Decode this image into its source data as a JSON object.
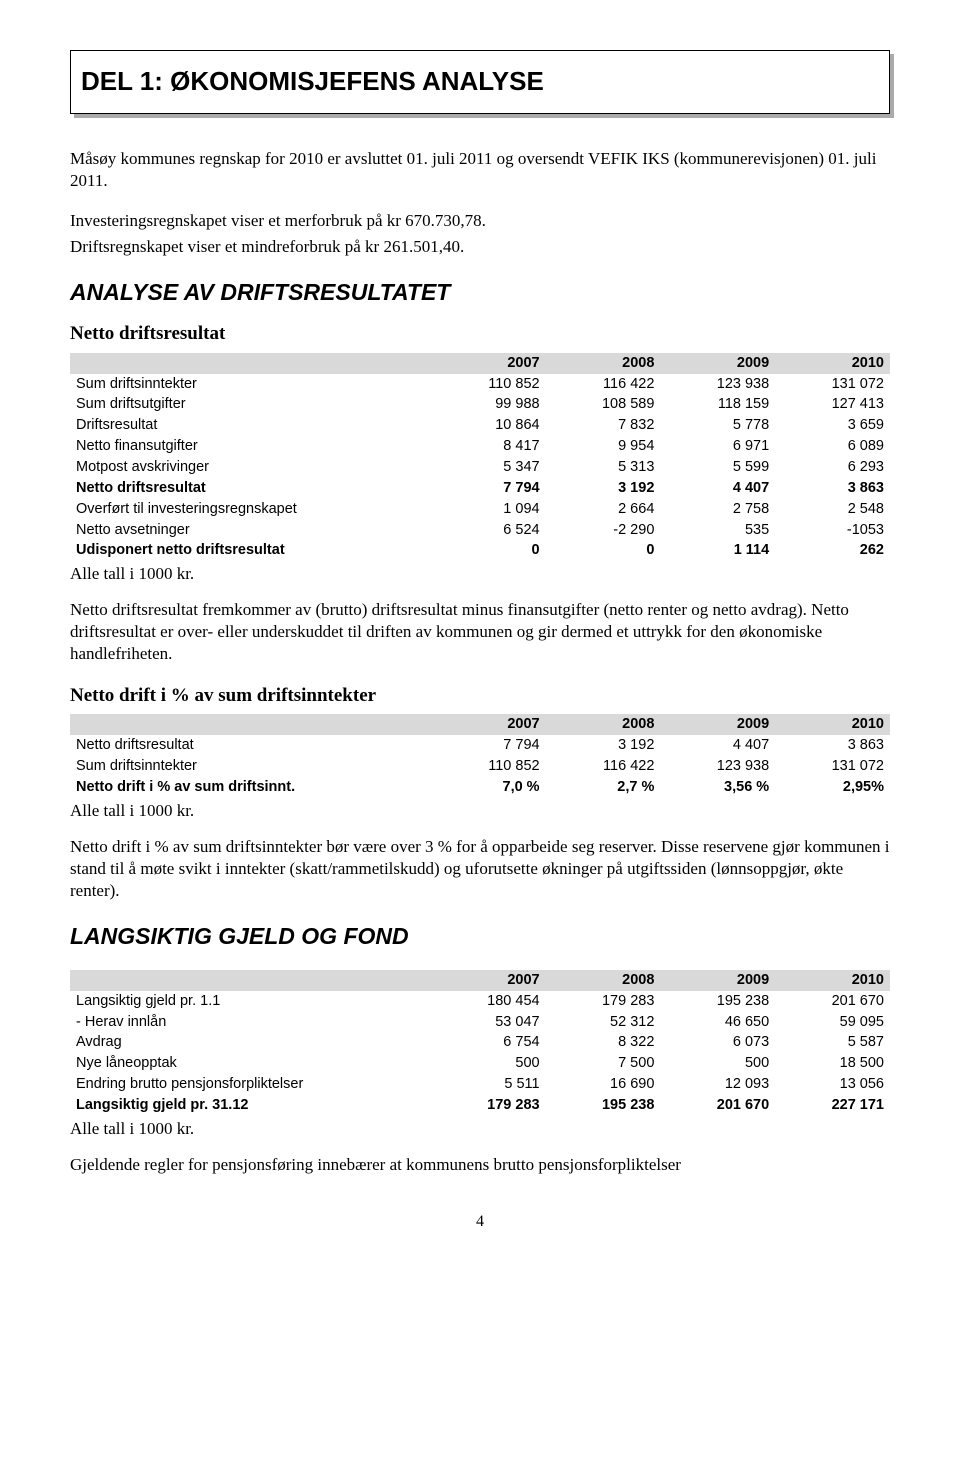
{
  "page_number": "4",
  "title": "DEL 1: ØKONOMISJEFENS ANALYSE",
  "intro_p1": "Måsøy kommunes regnskap for 2010 er avsluttet 01. juli 2011 og oversendt VEFIK IKS (kommunerevisjonen) 01. juli 2011.",
  "intro_p2": "Investeringsregnskapet viser et merforbruk på kr 670.730,78.",
  "intro_p3": "Driftsregnskapet viser et mindreforbruk på kr 261.501,40.",
  "h2_analyse": "ANALYSE AV DRIFTSRESULTATET",
  "h3_netto": "Netto driftsresultat",
  "table1": {
    "columns": [
      "",
      "2007",
      "2008",
      "2009",
      "2010"
    ],
    "rows": [
      {
        "label": "Sum driftsinntekter",
        "c": [
          "110 852",
          "116 422",
          "123 938",
          "131 072"
        ],
        "bold": false
      },
      {
        "label": "Sum driftsutgifter",
        "c": [
          "99 988",
          "108 589",
          "118 159",
          "127 413"
        ],
        "bold": false
      },
      {
        "label": "Driftsresultat",
        "c": [
          "10 864",
          "7 832",
          "5 778",
          "3 659"
        ],
        "bold": false
      },
      {
        "label": "Netto finansutgifter",
        "c": [
          "8 417",
          "9 954",
          "6 971",
          "6 089"
        ],
        "bold": false
      },
      {
        "label": "Motpost avskrivinger",
        "c": [
          "5 347",
          "5 313",
          "5 599",
          "6 293"
        ],
        "bold": false
      },
      {
        "label": "Netto driftsresultat",
        "c": [
          "7 794",
          "3 192",
          "4 407",
          "3 863"
        ],
        "bold": true
      },
      {
        "label": "Overført til investeringsregnskapet",
        "c": [
          "1 094",
          "2 664",
          "2 758",
          "2 548"
        ],
        "bold": false
      },
      {
        "label": "Netto avsetninger",
        "c": [
          "6 524",
          "-2 290",
          "535",
          "-1053"
        ],
        "bold": false
      },
      {
        "label": "Udisponert netto driftsresultat",
        "c": [
          "0",
          "0",
          "1 114",
          "262"
        ],
        "bold": true
      }
    ]
  },
  "note_kr": "Alle tall i 1000 kr.",
  "para_netto": "Netto driftsresultat fremkommer av (brutto) driftsresultat minus finansutgifter (netto renter og netto avdrag). Netto driftsresultat er over- eller underskuddet til driften av kommunen og gir dermed et uttrykk for den økonomiske handlefriheten.",
  "h3_netto_pct": "Netto drift i % av sum driftsinntekter",
  "table2": {
    "columns": [
      "",
      "2007",
      "2008",
      "2009",
      "2010"
    ],
    "rows": [
      {
        "label": "Netto driftsresultat",
        "c": [
          "7 794",
          "3 192",
          "4 407",
          "3 863"
        ],
        "bold": false
      },
      {
        "label": "Sum driftsinntekter",
        "c": [
          "110 852",
          "116 422",
          "123 938",
          "131 072"
        ],
        "bold": false
      },
      {
        "label": "Netto drift i % av sum driftsinnt.",
        "c": [
          "7,0 %",
          "2,7 %",
          "3,56 %",
          "2,95%"
        ],
        "bold": true
      }
    ]
  },
  "para_pct": "Netto drift i % av sum driftsinntekter bør være over 3 % for å opparbeide seg reserver. Disse reservene gjør kommunen i stand til å møte svikt i inntekter (skatt/rammetilskudd) og uforutsette økninger på utgiftssiden (lønnsoppgjør, økte renter).",
  "h2_gjeld": "LANGSIKTIG GJELD OG FOND",
  "table3": {
    "columns": [
      "",
      "2007",
      "2008",
      "2009",
      "2010"
    ],
    "rows": [
      {
        "label": "Langsiktig gjeld pr. 1.1",
        "c": [
          "180 454",
          "179 283",
          "195 238",
          "201 670"
        ],
        "bold": false
      },
      {
        "label": " - Herav innlån",
        "c": [
          "53 047",
          "52 312",
          "46 650",
          "59 095"
        ],
        "bold": false
      },
      {
        "label": "Avdrag",
        "c": [
          "6 754",
          "8 322",
          "6 073",
          "5 587"
        ],
        "bold": false
      },
      {
        "label": "Nye låneopptak",
        "c": [
          "500",
          "7 500",
          "500",
          "18 500"
        ],
        "bold": false
      },
      {
        "label": "Endring brutto pensjonsforpliktelser",
        "c": [
          "5 511",
          "16 690",
          "12 093",
          "13 056"
        ],
        "bold": false
      },
      {
        "label": "Langsiktig gjeld pr. 31.12",
        "c": [
          "179 283",
          "195 238",
          "201 670",
          "227 171"
        ],
        "bold": true
      }
    ]
  },
  "para_gjeld": "Gjeldende regler for pensjonsføring innebærer at kommunens brutto pensjonsforpliktelser",
  "colors": {
    "header_bg": "#d9d9d9",
    "text": "#000000",
    "background": "#ffffff"
  }
}
